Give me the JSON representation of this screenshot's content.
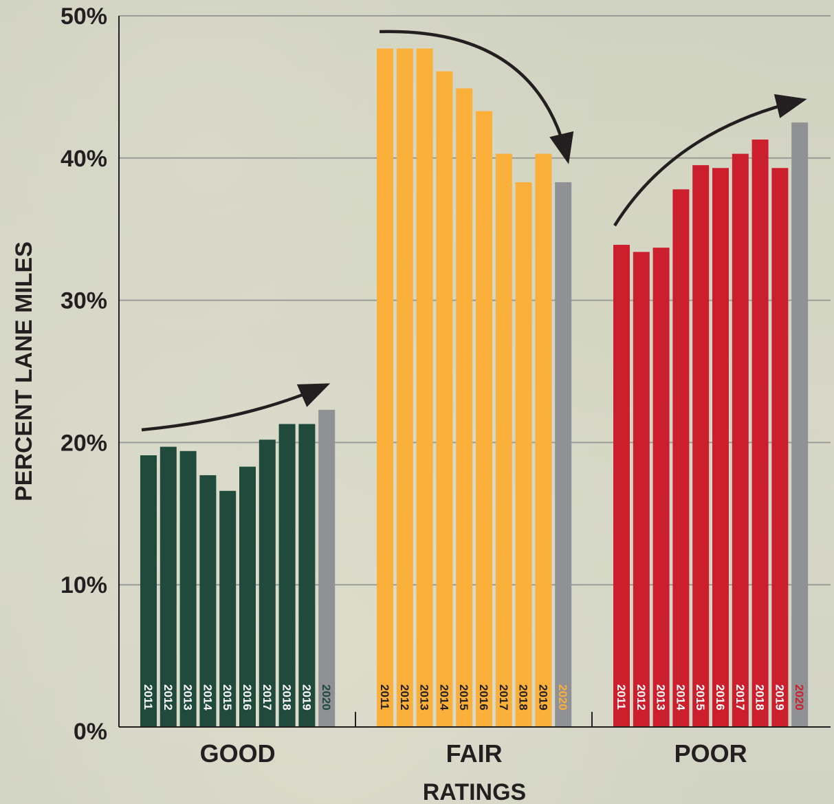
{
  "chart_data": {
    "type": "bar",
    "ylabel": "PERCENT LANE MILES",
    "xlabel": "RATINGS",
    "ylim": [
      0,
      50
    ],
    "yticks": [
      "0%",
      "10%",
      "20%",
      "30%",
      "40%",
      "50%"
    ],
    "grid": true,
    "groups": [
      {
        "name": "GOOD",
        "color": "#1f4a3c",
        "highlight_color": "#8f9194",
        "years": [
          "2011",
          "2012",
          "2013",
          "2014",
          "2015",
          "2016",
          "2017",
          "2018",
          "2019",
          "2020"
        ],
        "values": [
          19.1,
          19.7,
          19.4,
          17.7,
          16.6,
          18.3,
          20.2,
          21.3,
          21.3,
          22.3
        ],
        "trend": "up"
      },
      {
        "name": "FAIR",
        "color": "#fbb03b",
        "highlight_color": "#8f9194",
        "years": [
          "2011",
          "2012",
          "2013",
          "2014",
          "2015",
          "2016",
          "2017",
          "2018",
          "2019",
          "2020"
        ],
        "values": [
          47.7,
          47.7,
          47.7,
          46.1,
          44.9,
          43.3,
          40.3,
          38.3,
          40.3,
          38.3
        ],
        "trend": "down"
      },
      {
        "name": "POOR",
        "color": "#cc1f2d",
        "highlight_color": "#8f9194",
        "years": [
          "2011",
          "2012",
          "2013",
          "2014",
          "2015",
          "2016",
          "2017",
          "2018",
          "2019",
          "2020"
        ],
        "values": [
          33.9,
          33.4,
          33.7,
          37.8,
          39.5,
          39.3,
          40.3,
          41.3,
          39.3,
          42.5
        ],
        "trend": "up"
      }
    ]
  }
}
